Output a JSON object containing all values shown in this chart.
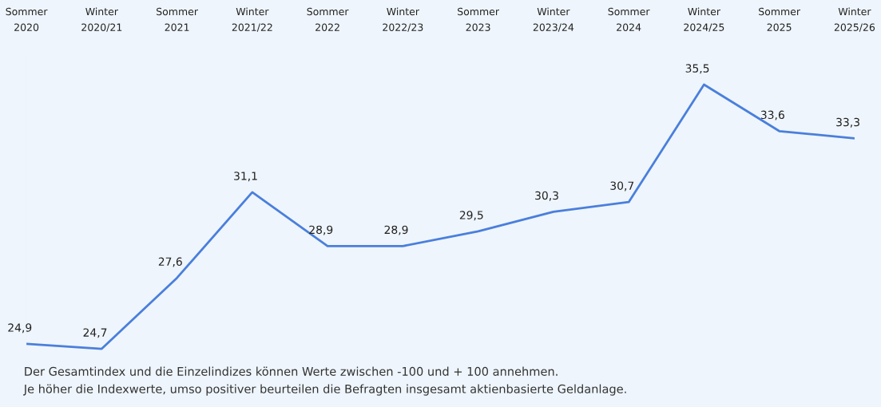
{
  "chart_data": {
    "type": "line",
    "categories": [
      "Sommer\n2020",
      "Winter\n2020/21",
      "Sommer\n2021",
      "Winter\n2021/22",
      "Sommer\n2022",
      "Winter\n2022/23",
      "Sommer\n2023",
      "Winter\n2023/24",
      "Sommer\n2024",
      "Winter\n2024/25",
      "Sommer\n2025",
      "Winter\n2025/26"
    ],
    "series": [
      {
        "color": "#4a7fdc",
        "values": [
          24.9,
          24.7,
          27.6,
          31.1,
          28.9,
          28.9,
          29.5,
          30.3,
          30.7,
          35.5,
          33.6,
          33.3
        ],
        "value_labels": [
          "24,9",
          "24,7",
          "27,6",
          "31,1",
          "28,9",
          "28,9",
          "29,5",
          "30,3",
          "30,7",
          "35,5",
          "33,6",
          "33,3"
        ]
      }
    ],
    "tick_labels": "x",
    "grid": false,
    "marker": "none",
    "line_style": "solid",
    "annotations": [
      "Der Gesamtindex und die Einzelindizes können Werte zwischen -100 und + 100 annehmen.",
      "Je höher die Indexwerte, umso positiver beurteilen die Befragten insgesamt aktienbasierte Geldanlage."
    ]
  }
}
